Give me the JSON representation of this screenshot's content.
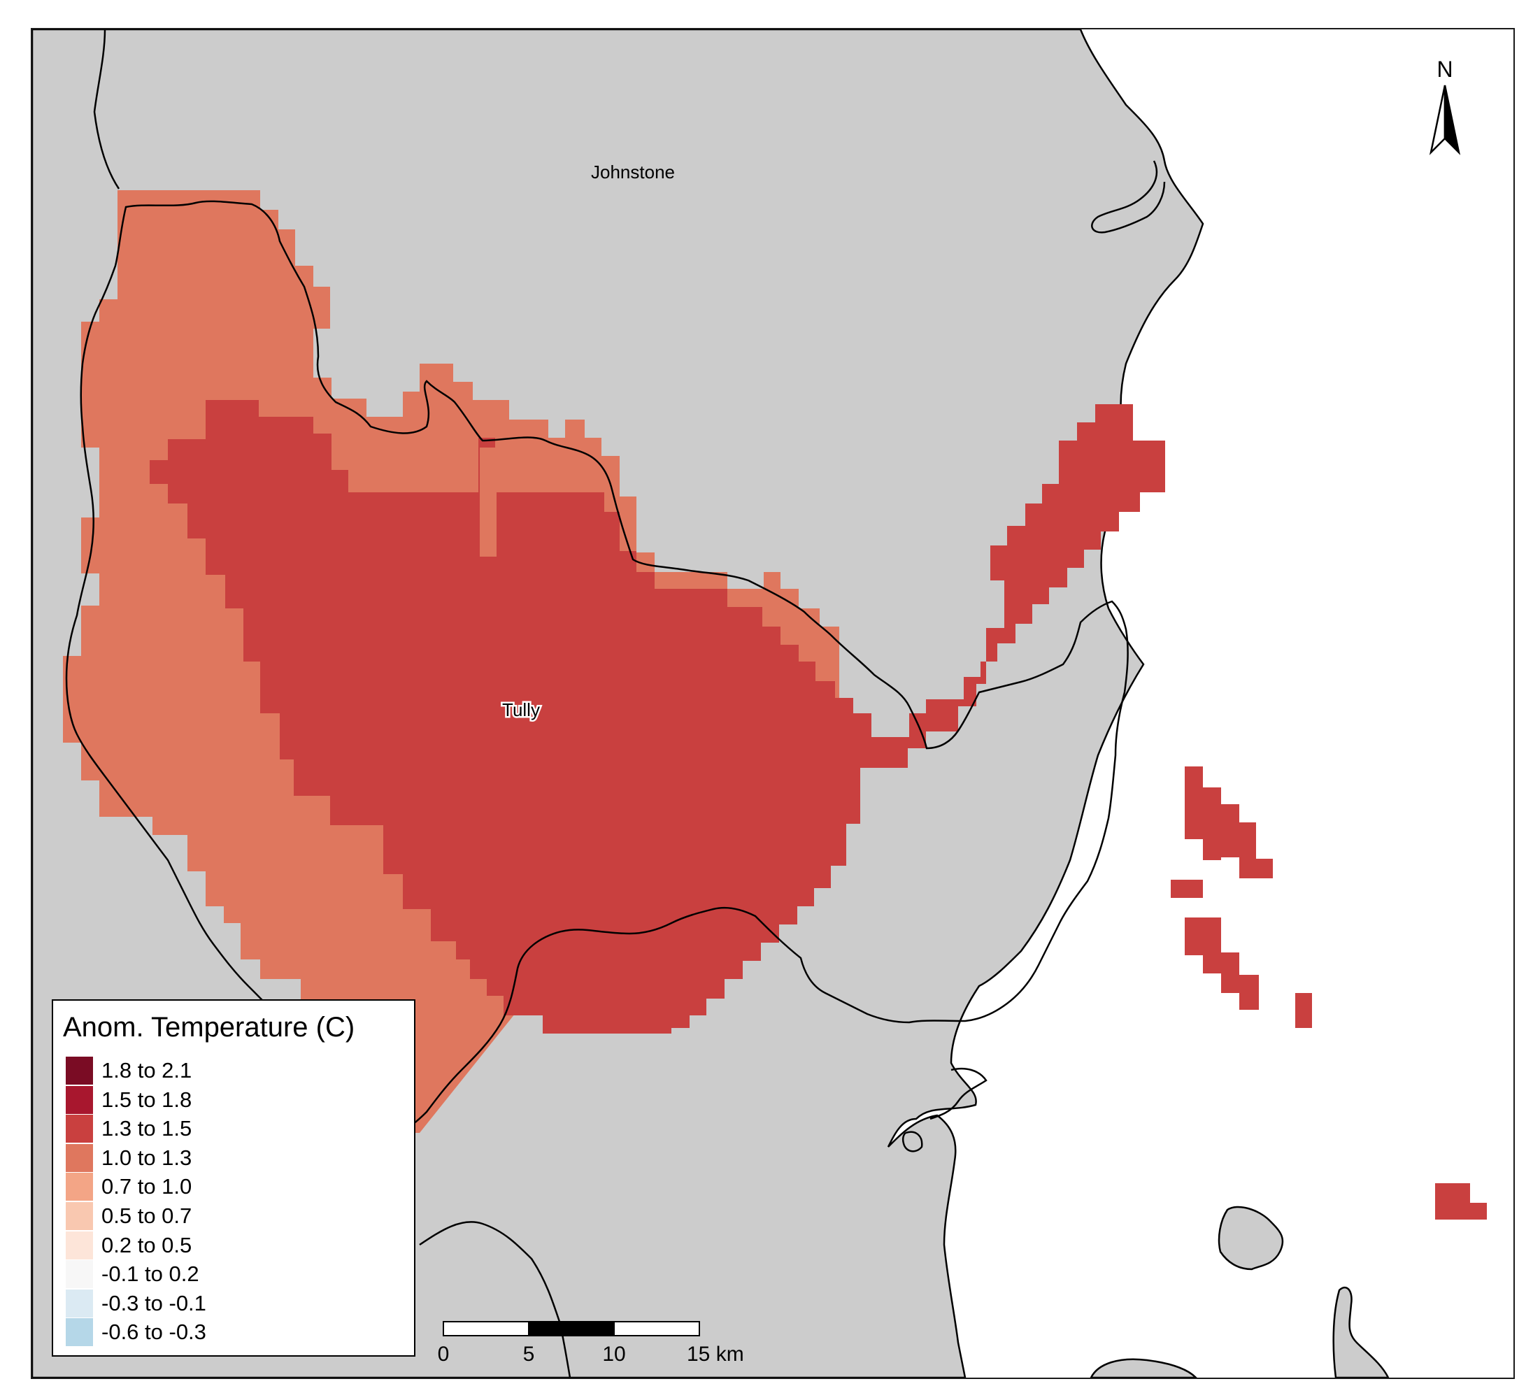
{
  "map": {
    "places": [
      {
        "name": "Johnstone"
      },
      {
        "name": "Tully"
      }
    ],
    "colors": {
      "land": "#cccccc",
      "water": "#ffffff",
      "boundary": "#000000"
    }
  },
  "north_arrow": {
    "label": "N"
  },
  "scale_bar": {
    "ticks": [
      "0",
      "5",
      "10",
      "15 km"
    ]
  },
  "legend": {
    "title": "Anom. Temperature (C)",
    "items": [
      {
        "label": "1.8 to 2.1",
        "color": "#7a0c24"
      },
      {
        "label": "1.5 to 1.8",
        "color": "#a8172e"
      },
      {
        "label": "1.3 to 1.5",
        "color": "#c9403f"
      },
      {
        "label": "1.0 to 1.3",
        "color": "#df775e"
      },
      {
        "label": "0.7 to 1.0",
        "color": "#f3a586"
      },
      {
        "label": "0.5 to 0.7",
        "color": "#f9c8b0"
      },
      {
        "label": "0.2 to 0.5",
        "color": "#fde5d9"
      },
      {
        "label": "-0.1 to 0.2",
        "color": "#f7f7f7"
      },
      {
        "label": "-0.3 to -0.1",
        "color": "#dbeaf3"
      },
      {
        "label": "-0.6 to -0.3",
        "color": "#b5d7e8"
      }
    ]
  }
}
